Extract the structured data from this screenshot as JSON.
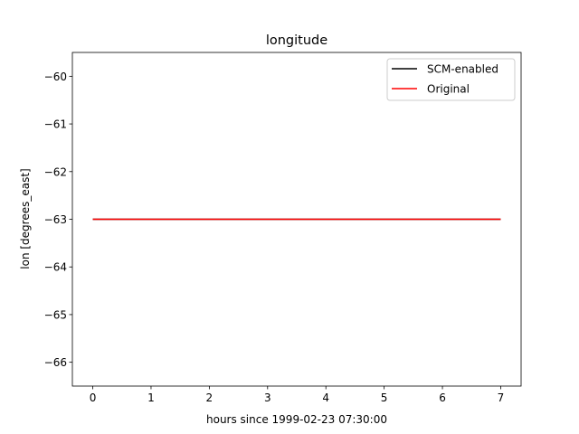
{
  "chart_data": {
    "type": "line",
    "title": "longitude",
    "xlabel": "hours since 1999-02-23 07:30:00",
    "ylabel": "lon [degrees_east]",
    "xlim": [
      -0.35,
      7.35
    ],
    "ylim": [
      -66.5,
      -59.5
    ],
    "x_ticks": [
      0,
      1,
      2,
      3,
      4,
      5,
      6,
      7
    ],
    "x_tick_labels": [
      "0",
      "1",
      "2",
      "3",
      "4",
      "5",
      "6",
      "7"
    ],
    "y_ticks": [
      -60,
      -61,
      -62,
      -63,
      -64,
      -65,
      -66
    ],
    "y_tick_labels": [
      "−60",
      "−61",
      "−62",
      "−63",
      "−64",
      "−65",
      "−66"
    ],
    "grid": false,
    "legend_position": "top-right",
    "series": [
      {
        "name": "SCM-enabled",
        "color": "#000000",
        "x": [
          0,
          7
        ],
        "y": [
          -63,
          -63
        ]
      },
      {
        "name": "Original",
        "color": "#ff0000",
        "x": [
          0,
          7
        ],
        "y": [
          -63,
          -63
        ]
      }
    ]
  }
}
